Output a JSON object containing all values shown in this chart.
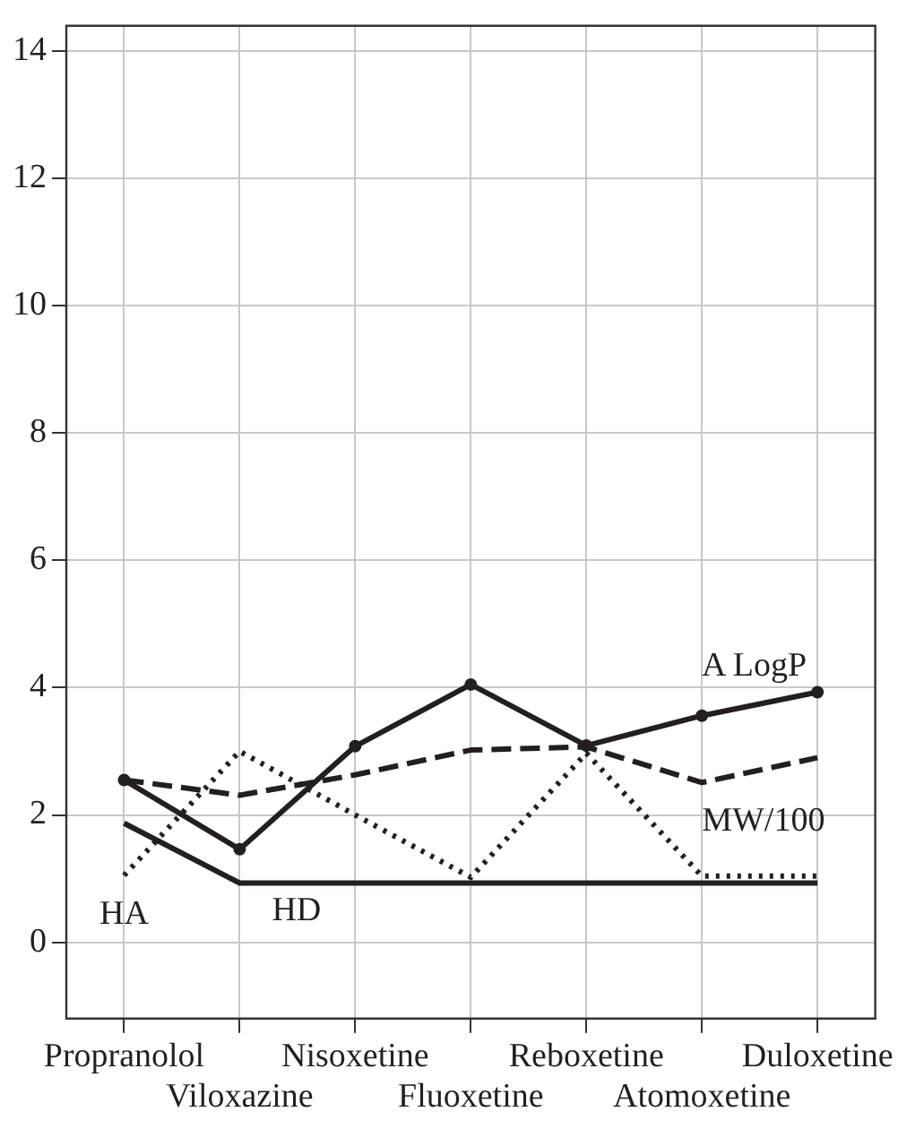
{
  "chart_data": {
    "type": "line",
    "categories": [
      "Propranolol",
      "Viloxazine",
      "Nisoxetine",
      "Fluoxetine",
      "Reboxetine",
      "Atomoxetine",
      "Duloxetine"
    ],
    "series": [
      {
        "name": "A LogP",
        "color": "#231f20",
        "marker": "circle",
        "line_style": "solid",
        "values": [
          2.55,
          1.46,
          3.08,
          4.05,
          3.09,
          3.56,
          3.93
        ]
      },
      {
        "name": "MW/100",
        "color": "#231f20",
        "marker": "none",
        "line_style": "dashed",
        "values": [
          2.55,
          2.31,
          2.63,
          3.02,
          3.07,
          2.51,
          2.9
        ]
      },
      {
        "name": "HA",
        "color": "#231f20",
        "marker": "none",
        "line_style": "dotted",
        "values": [
          1.05,
          3,
          2,
          1.02,
          2.97,
          1.04,
          1.04
        ]
      },
      {
        "name": "HD",
        "color": "#231f20",
        "marker": "none",
        "line_style": "solid",
        "values": [
          1.87,
          0.93,
          0.93,
          0.93,
          0.93,
          0.93,
          0.93
        ]
      }
    ],
    "ylim": [
      -1.2,
      14.4
    ],
    "yticks": [
      0,
      2,
      4,
      6,
      8,
      10,
      12,
      14
    ],
    "grid": true,
    "legend": false
  }
}
